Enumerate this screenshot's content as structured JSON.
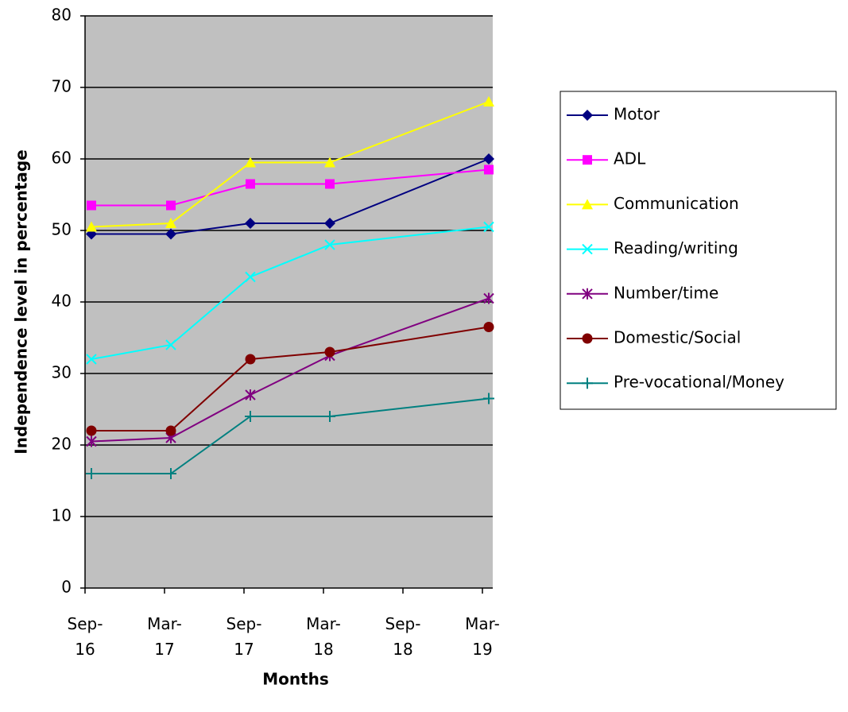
{
  "chart_data": {
    "type": "line",
    "y_label": "Independence level in percentage",
    "x_label": "Months",
    "x": [
      "Sep-16",
      "Mar-17",
      "Sep-17",
      "Mar-18",
      "Mar-19"
    ],
    "xticks": [
      "Sep-16",
      "Mar-17",
      "Sep-17",
      "Mar-18",
      "Sep-18",
      "Mar-19"
    ],
    "ylim": [
      0,
      80
    ],
    "yticks": [
      0,
      10,
      20,
      30,
      40,
      50,
      60,
      70,
      80
    ],
    "grid": true,
    "legend": "right",
    "series": [
      {
        "name": "Motor",
        "color": "#000080",
        "marker": "diamond",
        "values": [
          49.5,
          49.5,
          51,
          51,
          60
        ]
      },
      {
        "name": "ADL",
        "color": "#ff00ff",
        "marker": "square",
        "values": [
          53.5,
          53.5,
          56.5,
          56.5,
          58.5
        ]
      },
      {
        "name": "Communication",
        "color": "#ffff00",
        "marker": "triangle",
        "values": [
          50.5,
          51,
          59.5,
          59.5,
          68
        ]
      },
      {
        "name": "Reading/writing",
        "color": "#00ffff",
        "marker": "x",
        "values": [
          32,
          34,
          43.5,
          48,
          50.5
        ]
      },
      {
        "name": "Number/time",
        "color": "#800080",
        "marker": "star",
        "values": [
          20.5,
          21,
          27,
          32.5,
          40.5
        ]
      },
      {
        "name": "Domestic/Social",
        "color": "#800000",
        "marker": "circle",
        "values": [
          22,
          22,
          32,
          33,
          36.5
        ]
      },
      {
        "name": "Pre-vocational/Money",
        "color": "#008080",
        "marker": "plus",
        "values": [
          16,
          16,
          24,
          24,
          26.5
        ]
      }
    ]
  }
}
